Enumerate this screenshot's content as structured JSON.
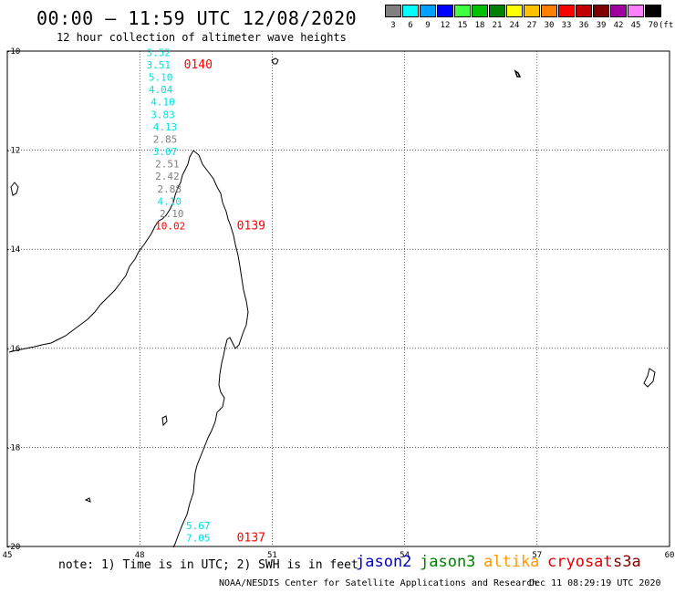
{
  "header": {
    "title": "00:00 – 11:59 UTC 12/08/2020",
    "subtitle": "12 hour collection of altimeter wave heights"
  },
  "legend": {
    "unit": "(ft)",
    "bins": [
      {
        "label": "3",
        "color": "#808080"
      },
      {
        "label": "6",
        "color": "#00ffff"
      },
      {
        "label": "9",
        "color": "#00a0ff"
      },
      {
        "label": "12",
        "color": "#0000ff"
      },
      {
        "label": "15",
        "color": "#40ff40"
      },
      {
        "label": "18",
        "color": "#00c000"
      },
      {
        "label": "21",
        "color": "#008000"
      },
      {
        "label": "24",
        "color": "#ffff00"
      },
      {
        "label": "27",
        "color": "#ffc000"
      },
      {
        "label": "30",
        "color": "#ff8000"
      },
      {
        "label": "33",
        "color": "#ff0000"
      },
      {
        "label": "36",
        "color": "#c00000"
      },
      {
        "label": "39",
        "color": "#800000"
      },
      {
        "label": "42",
        "color": "#a000a0"
      },
      {
        "label": "45",
        "color": "#ff80ff"
      },
      {
        "label": "70",
        "color": "#000000"
      }
    ]
  },
  "map": {
    "lon_range": [
      45,
      60
    ],
    "lat_range": [
      -20,
      -10
    ],
    "lon_ticks": [
      "45",
      "48",
      "51",
      "54",
      "57",
      "60"
    ],
    "lat_ticks": [
      "-10",
      "-12",
      "-14",
      "-16",
      "-18",
      "-20"
    ],
    "grid": true,
    "track_color_cyan": "#00e0e0",
    "track_color_gray": "#808080",
    "pass_color": "#ff0000"
  },
  "passes": [
    {
      "id": "0140",
      "lon": 49.0,
      "lat": -10.35
    },
    {
      "id": "0139",
      "lon": 50.2,
      "lat": -13.6
    },
    {
      "id": "0137",
      "lon": 50.2,
      "lat": -19.9
    }
  ],
  "swh": [
    {
      "value": "3.52",
      "lon": 48.15,
      "lat": -10.1,
      "color": "cyan"
    },
    {
      "value": "3.51",
      "lon": 48.15,
      "lat": -10.35,
      "color": "cyan"
    },
    {
      "value": "5.10",
      "lon": 48.2,
      "lat": -10.6,
      "color": "cyan"
    },
    {
      "value": "4.04",
      "lon": 48.2,
      "lat": -10.85,
      "color": "cyan"
    },
    {
      "value": "4.10",
      "lon": 48.25,
      "lat": -11.1,
      "color": "cyan"
    },
    {
      "value": "3.83",
      "lon": 48.25,
      "lat": -11.35,
      "color": "cyan"
    },
    {
      "value": "4.13",
      "lon": 48.3,
      "lat": -11.6,
      "color": "cyan"
    },
    {
      "value": "2.85",
      "lon": 48.3,
      "lat": -11.85,
      "color": "gray"
    },
    {
      "value": "3.07",
      "lon": 48.3,
      "lat": -12.1,
      "color": "cyan"
    },
    {
      "value": "2.51",
      "lon": 48.35,
      "lat": -12.35,
      "color": "gray"
    },
    {
      "value": "2.42",
      "lon": 48.35,
      "lat": -12.6,
      "color": "gray"
    },
    {
      "value": "2.88",
      "lon": 48.4,
      "lat": -12.85,
      "color": "gray"
    },
    {
      "value": "4.10",
      "lon": 48.4,
      "lat": -13.1,
      "color": "cyan"
    },
    {
      "value": "2.10",
      "lon": 48.45,
      "lat": -13.35,
      "color": "gray"
    },
    {
      "value": "10.02",
      "lon": 48.35,
      "lat": -13.6,
      "color": "red"
    },
    {
      "value": "5.67",
      "lon": 49.05,
      "lat": -19.65,
      "color": "cyan"
    },
    {
      "value": "7.05",
      "lon": 49.05,
      "lat": -19.9,
      "color": "cyan"
    }
  ],
  "footer": {
    "note": "note: 1) Time is in UTC; 2) SWH is in feet",
    "credit": "NOAA/NESDIS Center for Satellite Applications and Research",
    "timestamp": "Dec 11 08:29:19 UTC 2020",
    "satellites": [
      {
        "name": "jason2",
        "color": "#0000c0"
      },
      {
        "name": "jason3",
        "color": "#008000"
      },
      {
        "name": "altika",
        "color": "#ff9900"
      },
      {
        "name": "cryosat",
        "color": "#e00000"
      },
      {
        "name": "s3a",
        "color": "#800000"
      }
    ]
  }
}
